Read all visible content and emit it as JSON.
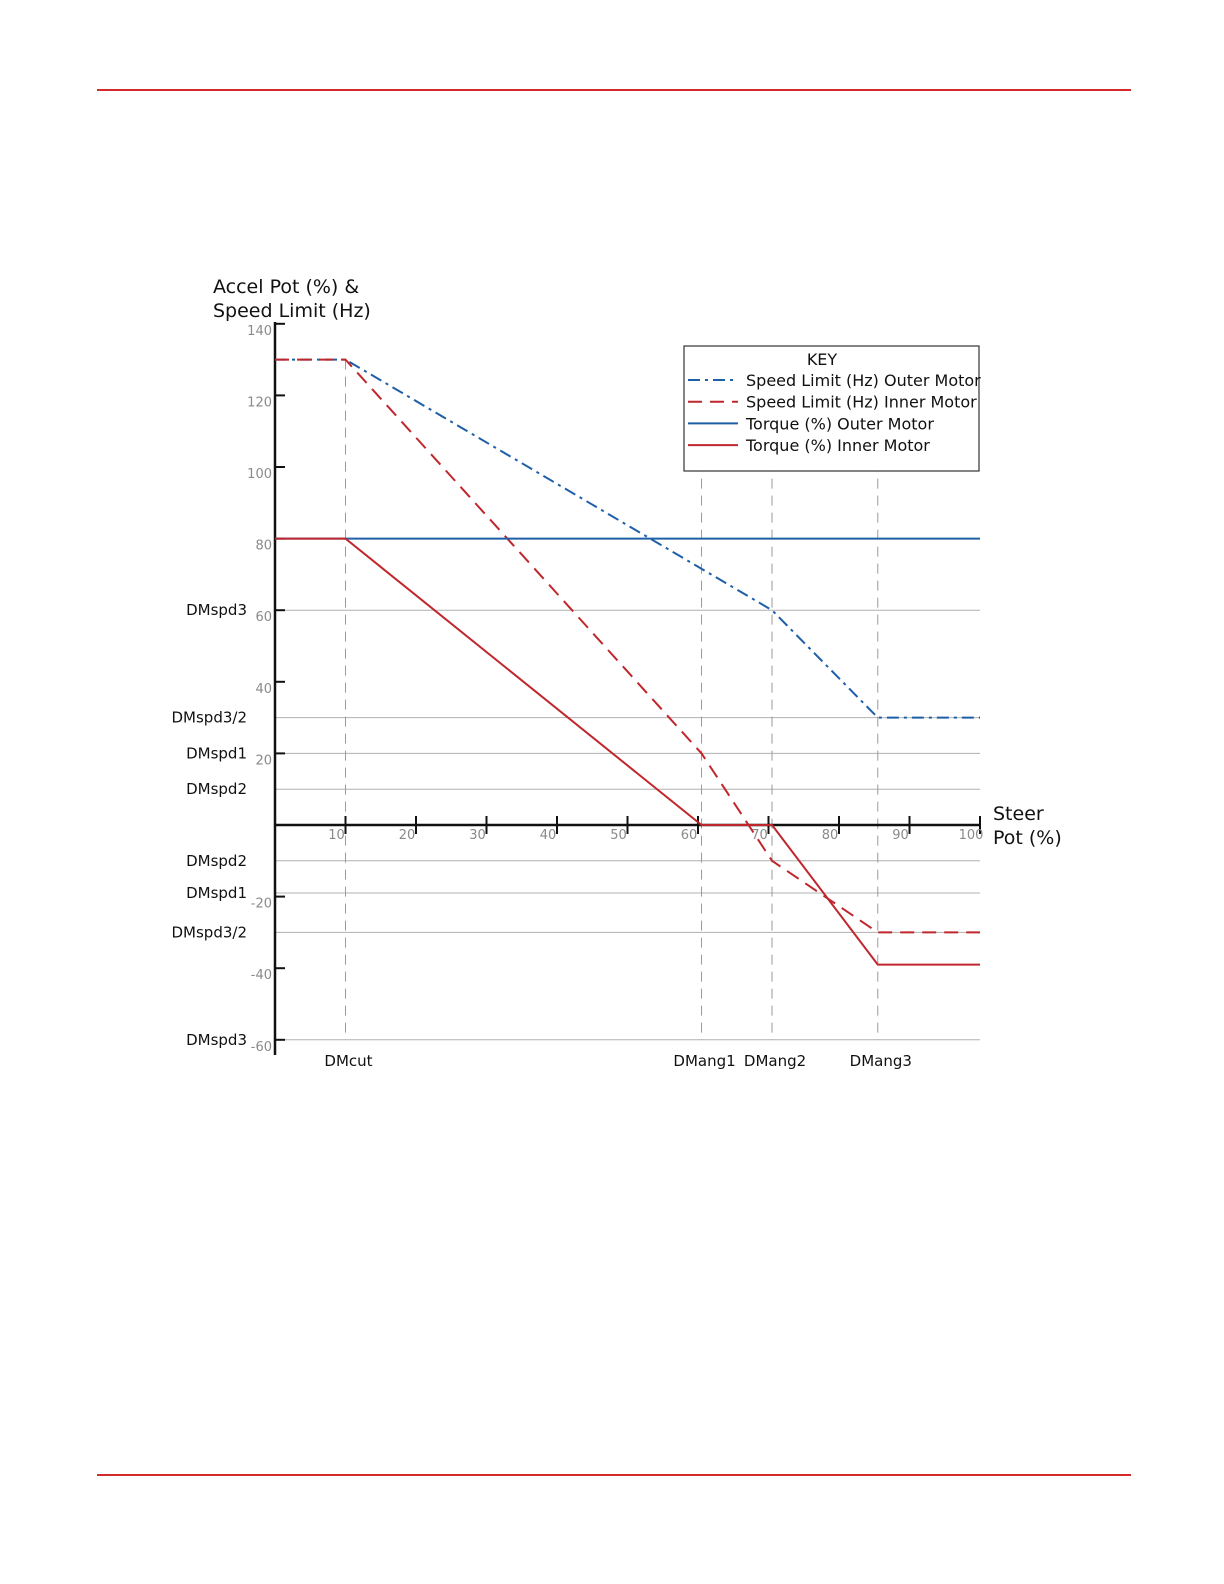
{
  "page": {
    "rule_color": "#d42a2a"
  },
  "chart_data": {
    "type": "line",
    "ylabel": [
      "Accel Pot (%) &",
      "Speed Limit (Hz)"
    ],
    "xlabel": [
      "Steer",
      "Pot (%)"
    ],
    "xlim": [
      0,
      100
    ],
    "ylim": [
      -60,
      140
    ],
    "x_ticks": [
      10,
      20,
      30,
      40,
      50,
      60,
      70,
      80,
      90,
      100
    ],
    "y_ticks": [
      -60,
      -40,
      -20,
      20,
      40,
      60,
      80,
      100,
      120,
      140
    ],
    "grid": false,
    "legend_position": "top-right",
    "legend_title": "KEY",
    "reference_y": [
      {
        "label": "DMspd3",
        "y": 60
      },
      {
        "label": "DMspd3/2",
        "y": 30
      },
      {
        "label": "DMspd1",
        "y": 20
      },
      {
        "label": "DMspd2",
        "y": 10
      },
      {
        "label": "DMspd2",
        "y": -10
      },
      {
        "label": "DMspd1",
        "y": -19
      },
      {
        "label": "DMspd3/2",
        "y": -30
      },
      {
        "label": "DMspd3",
        "y": -60
      }
    ],
    "reference_x": [
      {
        "label": "DMcut",
        "x": 10
      },
      {
        "label": "DMang1",
        "x": 60.5
      },
      {
        "label": "DMang2",
        "x": 70.5
      },
      {
        "label": "DMang3",
        "x": 85.5
      }
    ],
    "series": [
      {
        "name": "Speed Limit (Hz) Outer Motor",
        "color": "#1f5fa8",
        "style": "dashdot",
        "x": [
          0,
          10,
          70.5,
          85.5,
          100
        ],
        "y": [
          130,
          130,
          60,
          30,
          30
        ]
      },
      {
        "name": "Speed Limit (Hz) Inner Motor",
        "color": "#c0272d",
        "style": "dashed",
        "x": [
          0,
          10,
          60.5,
          70.5,
          85.5,
          100
        ],
        "y": [
          130,
          130,
          20,
          -10,
          -30,
          -30
        ]
      },
      {
        "name": "Torque (%) Outer Motor",
        "color": "#1f5fa8",
        "style": "solid",
        "x": [
          0,
          100
        ],
        "y": [
          80,
          80
        ]
      },
      {
        "name": "Torque (%) Inner Motor",
        "color": "#c0272d",
        "style": "solid",
        "x": [
          0,
          10,
          60.5,
          70.5,
          85.5,
          100
        ],
        "y": [
          80,
          80,
          0,
          0,
          -39,
          -39
        ]
      }
    ]
  }
}
